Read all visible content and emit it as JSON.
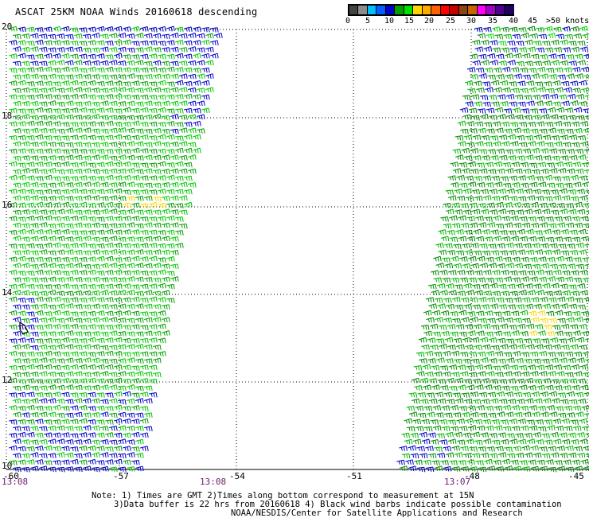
{
  "title": "ASCAT 25KM NOAA Winds 20160618 descending",
  "scale": {
    "colors": [
      "#444444",
      "#8c8c8c",
      "#00bfff",
      "#0060ff",
      "#0000c8",
      "#00a000",
      "#00e000",
      "#ffd700",
      "#ffaa00",
      "#ff6000",
      "#ff0000",
      "#c80000",
      "#8b4513",
      "#c86400",
      "#ff00ff",
      "#a000c8",
      "#500090",
      "#200060"
    ],
    "labels": [
      "0",
      "5",
      "10",
      "15",
      "20",
      "25",
      "30",
      "35",
      "40",
      "45",
      ">50 knots"
    ]
  },
  "lat_labels": [
    "20",
    "18",
    "16",
    "14",
    "12",
    "10"
  ],
  "lon_labels": [
    "-60",
    "-57",
    "-54",
    "-51",
    "-48",
    "-45"
  ],
  "times": [
    "13:08",
    "13:08",
    "13:07"
  ],
  "notes": {
    "line1": "Note: 1) Times are GMT 2)Times along bottom correspond to measurement at 15N",
    "line2": "3)Data buffer is 22 hrs from 20160618 4) Black wind barbs indicate possible contamination",
    "line3": "NOAA/NESDIS/Center for Satellite Applications and Research"
  }
}
